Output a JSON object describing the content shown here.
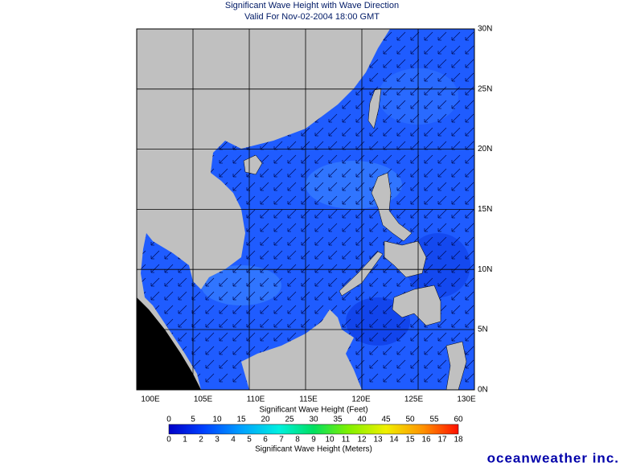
{
  "header": {
    "title": "Significant Wave Height with Wave Direction",
    "subtitle": "Valid For Nov-02-2004 18:00 GMT"
  },
  "map": {
    "lat_labels": [
      "30N",
      "25N",
      "20N",
      "15N",
      "10N",
      "5N",
      "0N"
    ],
    "lon_labels": [
      "100E",
      "105E",
      "110E",
      "115E",
      "120E",
      "125E",
      "130E"
    ]
  },
  "legend": {
    "feet_title": "Significant Wave Height (Feet)",
    "feet_labels": [
      "0",
      "5",
      "10",
      "15",
      "20",
      "25",
      "30",
      "35",
      "40",
      "45",
      "50",
      "55",
      "60"
    ],
    "meters_labels": [
      "0",
      "1",
      "2",
      "3",
      "4",
      "5",
      "6",
      "7",
      "8",
      "9",
      "10",
      "11",
      "12",
      "13",
      "14",
      "15",
      "16",
      "17",
      "18"
    ],
    "meters_title": "Significant Wave Height (Meters)"
  },
  "footer": {
    "brand": "oceanweather inc."
  }
}
